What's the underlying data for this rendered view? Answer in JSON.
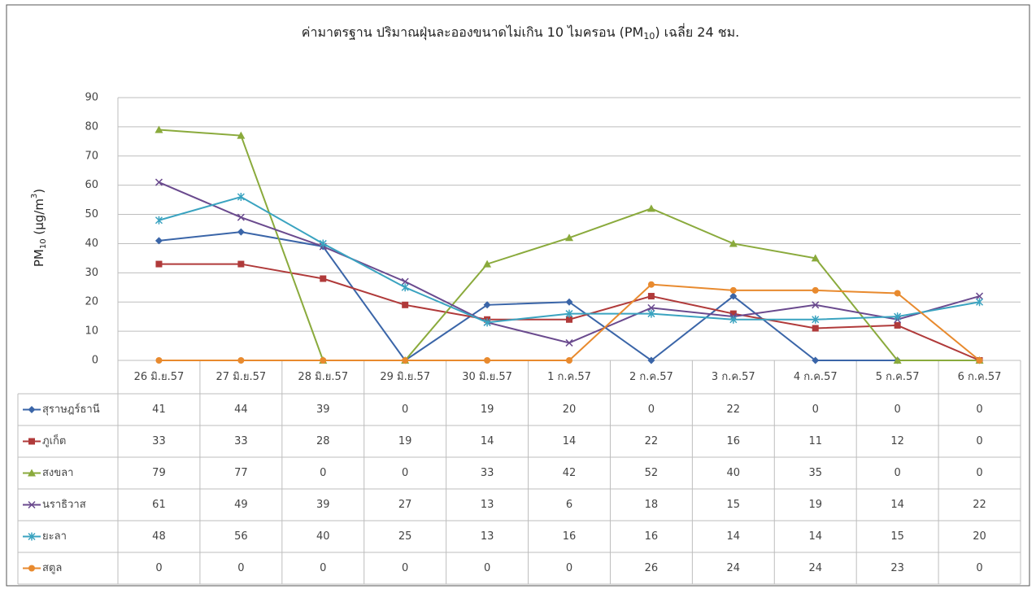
{
  "chart_data": {
    "type": "line",
    "title": [
      "ค่ามาตรฐาน ปริมาณฝุ่นละอองขนาดไม่เกิน 10 ไมครอน (PM",
      "10",
      ") เฉลี่ย 24 ชม."
    ],
    "y_label": [
      "PM",
      "10",
      " (µg/m",
      "3",
      ")"
    ],
    "categories": [
      "26 มิ.ย.57",
      "27 มิ.ย.57",
      "28 มิ.ย.57",
      "29 มิ.ย.57",
      "30 มิ.ย.57",
      "1 ก.ค.57",
      "2 ก.ค.57",
      "3 ก.ค.57",
      "4 ก.ค.57",
      "5 ก.ค.57",
      "6 ก.ค.57"
    ],
    "series": [
      {
        "name": "สุราษฎร์ธานี",
        "color": "#3a65a8",
        "marker": "diamond",
        "values": [
          41,
          44,
          39,
          0,
          19,
          20,
          0,
          22,
          0,
          0,
          0
        ]
      },
      {
        "name": "ภูเก็ต",
        "color": "#b03a3a",
        "marker": "square",
        "values": [
          33,
          33,
          28,
          19,
          14,
          14,
          22,
          16,
          11,
          12,
          0
        ]
      },
      {
        "name": "สงขลา",
        "color": "#8aaa3c",
        "marker": "triangle",
        "values": [
          79,
          77,
          0,
          0,
          33,
          42,
          52,
          40,
          35,
          0,
          0
        ]
      },
      {
        "name": "นราธิวาส",
        "color": "#6a4a8e",
        "marker": "x",
        "values": [
          61,
          49,
          39,
          27,
          13,
          6,
          18,
          15,
          19,
          14,
          22
        ]
      },
      {
        "name": "ยะลา",
        "color": "#3aa3c0",
        "marker": "star",
        "values": [
          48,
          56,
          40,
          25,
          13,
          16,
          16,
          14,
          14,
          15,
          20
        ]
      },
      {
        "name": "สตูล",
        "color": "#e88a2e",
        "marker": "circle",
        "values": [
          0,
          0,
          0,
          0,
          0,
          0,
          26,
          24,
          24,
          23,
          0
        ]
      }
    ],
    "ylim": [
      0,
      90
    ],
    "yticks": [
      0,
      10,
      20,
      30,
      40,
      50,
      60,
      70,
      80,
      90
    ],
    "grid": true
  }
}
